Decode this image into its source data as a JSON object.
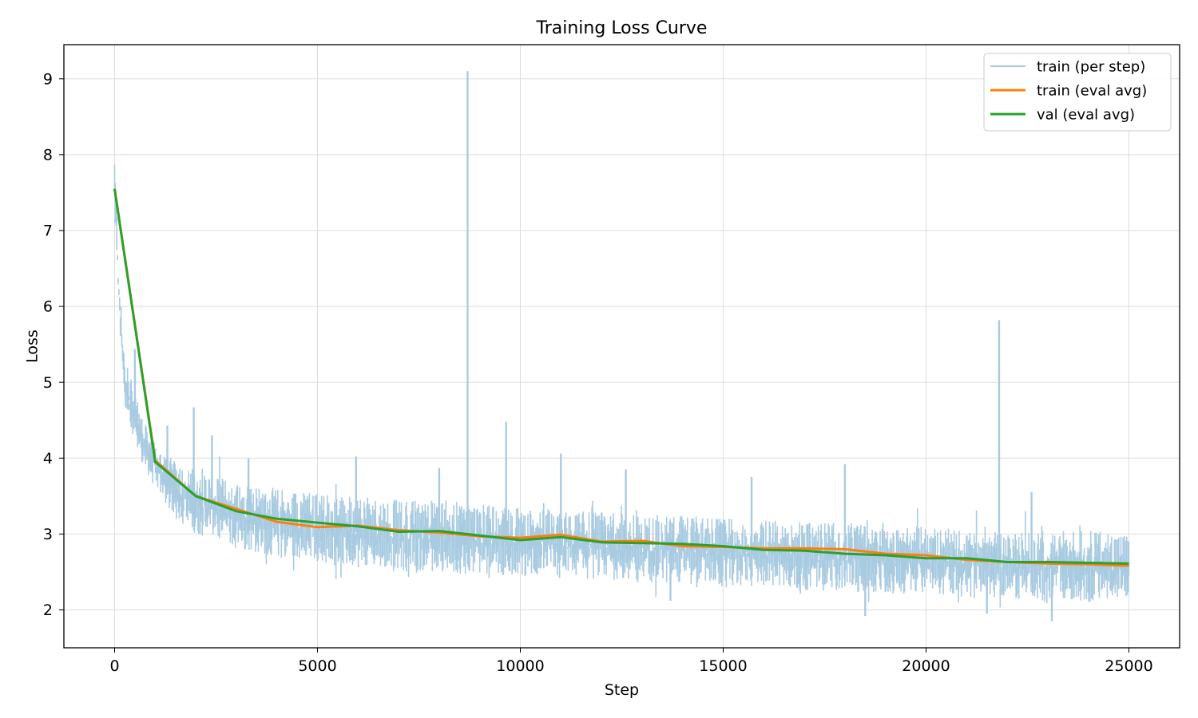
{
  "chart_data": {
    "type": "line",
    "title": "Training Loss Curve",
    "xlabel": "Step",
    "ylabel": "Loss",
    "xlim": [
      -1250,
      26250
    ],
    "ylim": [
      1.5,
      9.45
    ],
    "x_ticks": [
      0,
      5000,
      10000,
      15000,
      20000,
      25000
    ],
    "x_tick_labels": [
      "0",
      "5000",
      "10000",
      "15000",
      "20000",
      "25000"
    ],
    "y_ticks": [
      2,
      3,
      4,
      5,
      6,
      7,
      8,
      9
    ],
    "y_tick_labels": [
      "2",
      "3",
      "4",
      "5",
      "6",
      "7",
      "8",
      "9"
    ],
    "grid": true,
    "legend_position": "top-right",
    "series": [
      {
        "name": "train (per step)",
        "color": "#a9cbe2",
        "style": "noisy-band",
        "x": [
          0,
          100,
          200,
          300,
          500,
          700,
          1000,
          1500,
          2000,
          3000,
          4000,
          5000,
          6000,
          7000,
          8000,
          9000,
          10000,
          11000,
          12000,
          13000,
          14000,
          15000,
          16000,
          17000,
          18000,
          19000,
          20000,
          21000,
          22000,
          23000,
          24000,
          25000
        ],
        "upper": [
          8.0,
          6.6,
          5.6,
          5.2,
          4.9,
          4.5,
          4.2,
          3.95,
          3.85,
          3.7,
          3.6,
          3.55,
          3.5,
          3.45,
          3.45,
          3.4,
          3.35,
          3.3,
          3.3,
          3.25,
          3.25,
          3.2,
          3.2,
          3.15,
          3.15,
          3.1,
          3.1,
          3.05,
          3.05,
          3.05,
          3.05,
          3.0
        ],
        "lower": [
          7.3,
          5.8,
          5.0,
          4.5,
          4.2,
          3.9,
          3.6,
          3.2,
          3.0,
          2.8,
          2.7,
          2.6,
          2.55,
          2.5,
          2.5,
          2.45,
          2.45,
          2.4,
          2.4,
          2.35,
          2.35,
          2.3,
          2.3,
          2.25,
          2.25,
          2.2,
          2.2,
          2.15,
          2.15,
          2.1,
          2.1,
          2.1
        ],
        "spikes": [
          {
            "x": 8700,
            "y": 9.1
          },
          {
            "x": 21800,
            "y": 5.82
          },
          {
            "x": 9650,
            "y": 4.48
          },
          {
            "x": 1950,
            "y": 4.67
          },
          {
            "x": 2400,
            "y": 4.3
          },
          {
            "x": 1300,
            "y": 4.43
          },
          {
            "x": 11000,
            "y": 4.06
          },
          {
            "x": 18000,
            "y": 3.92
          },
          {
            "x": 5950,
            "y": 4.02
          },
          {
            "x": 3300,
            "y": 4.0
          },
          {
            "x": 12600,
            "y": 3.85
          },
          {
            "x": 22600,
            "y": 3.55
          },
          {
            "x": 8000,
            "y": 3.87
          },
          {
            "x": 15700,
            "y": 3.75
          },
          {
            "x": 18500,
            "y": 1.92
          },
          {
            "x": 23100,
            "y": 1.85
          },
          {
            "x": 21500,
            "y": 1.95
          },
          {
            "x": 13700,
            "y": 2.12
          },
          {
            "x": 500,
            "y": 5.44
          }
        ]
      },
      {
        "name": "train (eval avg)",
        "color": "#ff7f0e",
        "x": [
          0,
          1000,
          2000,
          3000,
          4000,
          5000,
          6000,
          7000,
          8000,
          9000,
          10000,
          11000,
          12000,
          13000,
          14000,
          15000,
          16000,
          17000,
          18000,
          19000,
          20000,
          21000,
          22000,
          23000,
          24000,
          25000
        ],
        "values": [
          7.55,
          3.97,
          3.5,
          3.33,
          3.16,
          3.09,
          3.11,
          3.05,
          3.02,
          2.97,
          2.95,
          2.99,
          2.9,
          2.91,
          2.84,
          2.83,
          2.81,
          2.81,
          2.8,
          2.74,
          2.72,
          2.66,
          2.63,
          2.61,
          2.6,
          2.58
        ]
      },
      {
        "name": "val (eval avg)",
        "color": "#2ca02c",
        "x": [
          0,
          1000,
          2000,
          3000,
          4000,
          5000,
          6000,
          7000,
          8000,
          9000,
          10000,
          11000,
          12000,
          13000,
          14000,
          15000,
          16000,
          17000,
          18000,
          19000,
          20000,
          21000,
          22000,
          23000,
          24000,
          25000
        ],
        "values": [
          7.55,
          3.95,
          3.5,
          3.3,
          3.2,
          3.15,
          3.1,
          3.03,
          3.04,
          2.98,
          2.92,
          2.96,
          2.89,
          2.88,
          2.87,
          2.84,
          2.79,
          2.78,
          2.74,
          2.72,
          2.68,
          2.68,
          2.63,
          2.63,
          2.62,
          2.61
        ]
      }
    ]
  }
}
